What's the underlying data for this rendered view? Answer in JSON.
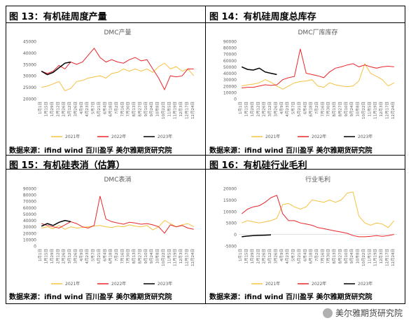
{
  "panels": [
    {
      "label": "图 13：有机硅周度产量",
      "source": "数据来源：ifind wind 百川盈孚 美尔雅期货研究院"
    },
    {
      "label": "图 14：有机硅周度总库存",
      "source": "数据来源：ifind wind 百川盈孚 美尔雅期货研究院"
    },
    {
      "label": "图 15：有机硅表消（估算）",
      "source": "数据来源：ifind wind 百川盈孚 美尔雅期货研究院"
    },
    {
      "label": "图 16：有机硅行业毛利",
      "source": "数据来源：ifind wind 百川盈孚 美尔雅期货研究院"
    }
  ],
  "watermark": "美尔雅期货研究院",
  "watermark_icon": "wechat-icon",
  "colors": {
    "y2021": "#f5c242",
    "y2022": "#e8262b",
    "y2023": "#000000"
  },
  "chart_data": [
    {
      "type": "line",
      "title": "DMC产量",
      "categories": [
        "1月1日",
        "1月15日",
        "1月29日",
        "2月12日",
        "2月26日",
        "3月12日",
        "3月26日",
        "4月9日",
        "4月23日",
        "5月7日",
        "5月21日",
        "6月4日",
        "6月18日",
        "7月2日",
        "7月16日",
        "7月30日",
        "8月13日",
        "8月27日",
        "9月10日",
        "9月24日",
        "10月8日",
        "10月22日",
        "11月5日",
        "11月19日",
        "12月3日",
        "12月17日",
        "12月24日"
      ],
      "ylim": [
        20000,
        45000
      ],
      "yticks": [
        20000,
        25000,
        30000,
        35000,
        40000,
        45000
      ],
      "series": [
        {
          "name": "2021年",
          "x": [
            0,
            1,
            2,
            3,
            4,
            5,
            6,
            7,
            8,
            9,
            10,
            11,
            12,
            13,
            14,
            15,
            16,
            17,
            18,
            19,
            20,
            21,
            22,
            23,
            24,
            25,
            26
          ],
          "values": [
            25000,
            25500,
            26500,
            27500,
            23500,
            24500,
            27500,
            28000,
            29000,
            29500,
            30000,
            29000,
            31000,
            31500,
            33000,
            32000,
            33000,
            32000,
            33000,
            31500,
            34000,
            35500,
            33000,
            34000,
            32000,
            33000,
            30000
          ]
        },
        {
          "name": "2022年",
          "x": [
            0,
            1,
            2,
            3,
            4,
            5,
            6,
            7,
            8,
            9,
            10,
            11,
            12,
            13,
            14,
            15,
            16,
            17,
            18,
            19,
            20,
            21,
            22,
            23,
            24,
            25,
            26
          ],
          "values": [
            32000,
            31000,
            32000,
            34500,
            33000,
            36000,
            35000,
            36000,
            39000,
            42000,
            38000,
            36000,
            37000,
            36000,
            35500,
            37000,
            38000,
            36500,
            37000,
            33000,
            29000,
            24000,
            30000,
            29500,
            30000,
            33000,
            33000
          ]
        },
        {
          "name": "2023年",
          "x": [
            0,
            1,
            2,
            3,
            4,
            5
          ],
          "values": [
            32000,
            30500,
            31500,
            33500,
            35500,
            36000
          ]
        }
      ]
    },
    {
      "type": "line",
      "title": "DMC厂库库存",
      "categories": [
        "1月1日",
        "1月15日",
        "1月29日",
        "2月12日",
        "2月26日",
        "3月12日",
        "3月26日",
        "4月9日",
        "4月23日",
        "5月7日",
        "5月21日",
        "6月4日",
        "6月18日",
        "7月2日",
        "7月16日",
        "7月30日",
        "8月13日",
        "8月27日",
        "9月10日",
        "9月24日",
        "10月8日",
        "10月22日",
        "11月5日",
        "11月19日",
        "12月3日",
        "12月17日",
        "12月24日"
      ],
      "ylim": [
        0,
        90000
      ],
      "yticks": [
        0,
        10000,
        20000,
        30000,
        40000,
        50000,
        60000,
        70000,
        80000,
        90000
      ],
      "series": [
        {
          "name": "2021年",
          "x": [
            0,
            1,
            2,
            3,
            4,
            5,
            6,
            7,
            8,
            9,
            10,
            11,
            12,
            13,
            14,
            15,
            16,
            17,
            18,
            19,
            20,
            21,
            22,
            23,
            24,
            25,
            26
          ],
          "values": [
            20000,
            22000,
            23000,
            25000,
            30000,
            26000,
            20000,
            15000,
            20000,
            25000,
            27000,
            28000,
            30000,
            20000,
            18000,
            25000,
            22000,
            20000,
            19000,
            20000,
            28000,
            55000,
            40000,
            35000,
            30000,
            20000,
            25000
          ]
        },
        {
          "name": "2022年",
          "x": [
            0,
            1,
            2,
            3,
            4,
            5,
            6,
            7,
            8,
            9,
            10,
            11,
            12,
            13,
            14,
            15,
            16,
            17,
            18,
            19,
            20,
            21,
            22,
            23,
            24,
            25,
            26
          ],
          "values": [
            17000,
            18000,
            18000,
            20000,
            22000,
            21000,
            22000,
            30000,
            33000,
            35000,
            78000,
            40000,
            38000,
            36000,
            33000,
            42000,
            48000,
            50000,
            53000,
            55000,
            50000,
            53000,
            50000,
            48000,
            50000,
            51000,
            50000
          ]
        },
        {
          "name": "2023年",
          "x": [
            0,
            1,
            2,
            3,
            4,
            5,
            6
          ],
          "values": [
            50000,
            46000,
            45000,
            48000,
            42000,
            40000,
            38000
          ]
        }
      ]
    },
    {
      "type": "line",
      "title": "DMC表消",
      "categories": [
        "1月1日",
        "1月15日",
        "1月29日",
        "2月12日",
        "2月26日",
        "3月12日",
        "3月26日",
        "4月9日",
        "4月23日",
        "5月7日",
        "5月21日",
        "6月4日",
        "6月18日",
        "7月2日",
        "7月16日",
        "7月30日",
        "8月13日",
        "8月27日",
        "9月10日",
        "9月24日",
        "10月8日",
        "10月22日",
        "11月5日",
        "11月19日",
        "12月3日",
        "12月17日",
        "12月24日"
      ],
      "ylim": [
        0,
        90000
      ],
      "yticks": [
        0,
        10000,
        20000,
        30000,
        40000,
        50000,
        60000,
        70000,
        80000,
        90000
      ],
      "series": [
        {
          "name": "2021年",
          "x": [
            0,
            1,
            2,
            3,
            4,
            5,
            6,
            7,
            8,
            9,
            10,
            11,
            12,
            13,
            14,
            15,
            16,
            17,
            18,
            19,
            20,
            21,
            22,
            23,
            24,
            25,
            26
          ],
          "values": [
            28000,
            30000,
            27000,
            32000,
            26000,
            30000,
            28000,
            29000,
            30000,
            31000,
            32000,
            30000,
            29000,
            31000,
            30000,
            33000,
            31000,
            30000,
            32000,
            25000,
            30000,
            40000,
            35000,
            30000,
            33000,
            35000,
            30000
          ]
        },
        {
          "name": "2022年",
          "x": [
            0,
            1,
            2,
            3,
            4,
            5,
            6,
            7,
            8,
            9,
            10,
            11,
            12,
            13,
            14,
            15,
            16,
            17,
            18,
            19,
            20,
            21,
            22,
            23,
            24,
            25,
            26
          ],
          "values": [
            35000,
            32000,
            30000,
            28000,
            33000,
            38000,
            35000,
            30000,
            28000,
            32000,
            78000,
            42000,
            38000,
            36000,
            34000,
            37000,
            36000,
            34000,
            35000,
            33000,
            30000,
            20000,
            33000,
            30000,
            32000,
            28000,
            26000
          ]
        },
        {
          "name": "2023年",
          "x": [
            0,
            1,
            2,
            3,
            4,
            5
          ],
          "values": [
            31000,
            35000,
            32000,
            37000,
            40000,
            38000
          ]
        }
      ]
    },
    {
      "type": "line",
      "title": "行业毛利",
      "categories": [
        "1月1日",
        "1月15日",
        "1月29日",
        "2月12日",
        "2月26日",
        "3月12日",
        "3月26日",
        "4月9日",
        "4月23日",
        "5月7日",
        "5月21日",
        "6月4日",
        "6月18日",
        "7月2日",
        "7月16日",
        "7月30日",
        "8月13日",
        "8月27日",
        "9月10日",
        "9月24日",
        "10月8日",
        "10月22日",
        "11月5日",
        "11月19日",
        "12月3日",
        "12月17日",
        "12月24日"
      ],
      "ylim": [
        -5000,
        20000
      ],
      "yticks": [
        -5000,
        0,
        5000,
        10000,
        15000,
        20000
      ],
      "series": [
        {
          "name": "2021年",
          "x": [
            0,
            1,
            2,
            3,
            4,
            5,
            6,
            7,
            8,
            9,
            10,
            11,
            12,
            13,
            14,
            15,
            16,
            17,
            18,
            19,
            20,
            21,
            22,
            23,
            24,
            25,
            26
          ],
          "values": [
            5000,
            6000,
            5500,
            5000,
            5500,
            6000,
            7000,
            13000,
            13500,
            12000,
            11000,
            12000,
            15000,
            14500,
            14000,
            15000,
            14000,
            15000,
            18000,
            18500,
            8000,
            5000,
            4000,
            5000,
            4500,
            3000,
            6000
          ]
        },
        {
          "name": "2022年",
          "x": [
            0,
            1,
            2,
            3,
            4,
            5,
            6,
            7,
            8,
            9,
            10,
            11,
            12,
            13,
            14,
            15,
            16,
            17,
            18,
            19,
            20,
            21,
            22,
            23,
            24,
            25,
            26
          ],
          "values": [
            9000,
            11000,
            12000,
            12500,
            14000,
            16000,
            17000,
            9000,
            6000,
            6000,
            5000,
            4500,
            4000,
            3000,
            2500,
            2000,
            1500,
            1000,
            500,
            -500,
            -1000,
            -1000,
            -800,
            -500,
            -800,
            -500,
            0
          ]
        },
        {
          "name": "2023年",
          "x": [
            0,
            1,
            2,
            3,
            4,
            5
          ],
          "values": [
            -1000,
            -700,
            -500,
            -400,
            -300,
            -200
          ]
        }
      ]
    }
  ]
}
